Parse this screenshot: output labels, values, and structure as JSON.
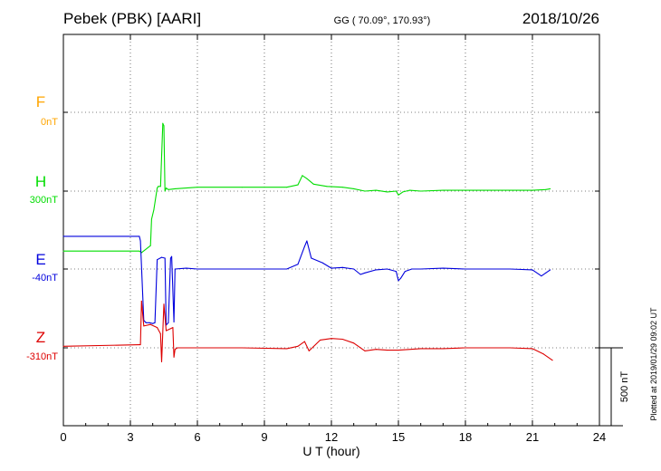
{
  "header": {
    "station": "Pebek (PBK)  [AARI]",
    "coords": "GG ( 70.09°, 170.93°)",
    "date": "2018/10/26"
  },
  "side_note": "Plotted at 2019/01/29 09:02 UT",
  "scale_bar_label": "500 nT",
  "chart_data": {
    "type": "line",
    "xlabel": "U T (hour)",
    "xlim": [
      0,
      24
    ],
    "xticks": [
      "0",
      "3",
      "6",
      "9",
      "12",
      "15",
      "18",
      "21",
      "24"
    ],
    "scale_bar_nT": 500,
    "grid": true,
    "series": [
      {
        "name": "F",
        "offset_label": "0nT",
        "color": "#ffa500",
        "x": [],
        "y": []
      },
      {
        "name": "H",
        "offset_label": "300nT",
        "color": "#00dd00",
        "x": [
          0,
          3.4,
          3.5,
          3.9,
          3.95,
          4.05,
          4.2,
          4.25,
          4.35,
          4.45,
          4.5,
          4.55,
          4.6,
          4.7,
          5.0,
          6.0,
          8.0,
          10.0,
          10.5,
          10.7,
          10.9,
          11.2,
          11.8,
          12.5,
          13.0,
          13.5,
          14.0,
          14.5,
          14.9,
          15.0,
          15.2,
          15.5,
          16.0,
          17.0,
          18.0,
          19.0,
          20.0,
          21.0,
          21.6,
          21.8
        ],
        "y": [
          -385,
          -385,
          -395,
          -350,
          -180,
          -120,
          20,
          30,
          30,
          435,
          420,
          0,
          20,
          10,
          15,
          25,
          25,
          25,
          40,
          100,
          80,
          45,
          30,
          25,
          15,
          0,
          5,
          -5,
          0,
          -25,
          -5,
          5,
          0,
          5,
          5,
          5,
          5,
          5,
          10,
          15
        ]
      },
      {
        "name": "E",
        "offset_label": "-40nT",
        "color": "#0000dd",
        "x": [
          0,
          3.4,
          3.45,
          3.6,
          3.7,
          3.85,
          4.0,
          4.1,
          4.2,
          4.4,
          4.55,
          4.6,
          4.7,
          4.8,
          4.85,
          4.95,
          5.0,
          5.5,
          6.0,
          8.0,
          10.0,
          10.5,
          10.8,
          10.9,
          11.1,
          11.6,
          12.0,
          12.5,
          13.0,
          13.3,
          13.5,
          14.0,
          14.5,
          14.9,
          15.0,
          15.1,
          15.3,
          15.6,
          16.0,
          17.0,
          18.0,
          19.0,
          20.0,
          21.0,
          21.4,
          21.6,
          21.8
        ],
        "y": [
          210,
          210,
          180,
          -330,
          -345,
          -345,
          -350,
          -345,
          60,
          75,
          70,
          -360,
          -345,
          70,
          80,
          -340,
          0,
          5,
          0,
          0,
          0,
          30,
          145,
          180,
          70,
          40,
          5,
          10,
          0,
          -35,
          -25,
          -5,
          0,
          -15,
          -75,
          -60,
          -15,
          0,
          0,
          5,
          0,
          0,
          0,
          -5,
          -45,
          -25,
          -5
        ]
      },
      {
        "name": "Z",
        "offset_label": "-310nT",
        "color": "#dd0000",
        "x": [
          0,
          3.4,
          3.45,
          3.5,
          3.6,
          3.9,
          4.2,
          4.35,
          4.4,
          4.5,
          4.6,
          4.9,
          4.95,
          5.0,
          5.1,
          6.0,
          8.0,
          10.0,
          10.5,
          10.8,
          11.0,
          11.5,
          12.0,
          12.5,
          13.0,
          13.5,
          14.0,
          14.5,
          15.0,
          16.0,
          17.0,
          18.0,
          19.0,
          20.0,
          21.0,
          21.5,
          21.9
        ],
        "y": [
          10,
          20,
          20,
          300,
          140,
          150,
          130,
          90,
          -90,
          280,
          110,
          130,
          -60,
          -10,
          0,
          0,
          0,
          -5,
          10,
          40,
          -20,
          50,
          60,
          55,
          30,
          -20,
          -10,
          -15,
          -15,
          -5,
          -5,
          0,
          0,
          0,
          -5,
          -40,
          -80
        ]
      }
    ]
  }
}
